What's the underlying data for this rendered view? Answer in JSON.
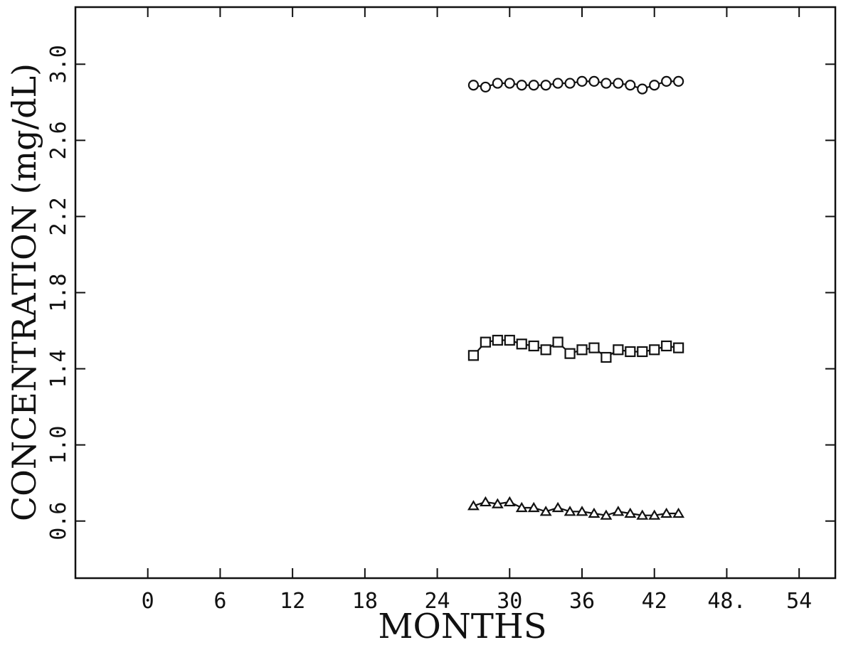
{
  "chart_data": {
    "type": "line",
    "title": "",
    "xlabel": "MONTHS",
    "ylabel": "CONCENTRATION (mg/dL)",
    "xlim": [
      -6,
      57
    ],
    "ylim": [
      0.3,
      3.3
    ],
    "xticks": [
      0,
      6,
      12,
      18,
      24,
      30,
      36,
      42,
      48,
      54
    ],
    "xtick_labels": [
      "0",
      "6",
      "12",
      "18",
      "24",
      "30",
      "36",
      "42",
      "48.",
      "54"
    ],
    "yticks": [
      0.6,
      1.0,
      1.4,
      1.8,
      2.2,
      2.6,
      3.0
    ],
    "ytick_labels": [
      "0.6",
      "1.0",
      "1.4",
      "1.8",
      "2.2",
      "2.6",
      "3.0"
    ],
    "grid": false,
    "x": [
      27,
      28,
      29,
      30,
      31,
      32,
      33,
      34,
      35,
      36,
      37,
      38,
      39,
      40,
      41,
      42,
      43,
      44
    ],
    "series": [
      {
        "marker": "circle",
        "values": [
          2.89,
          2.88,
          2.9,
          2.9,
          2.89,
          2.89,
          2.89,
          2.9,
          2.9,
          2.91,
          2.91,
          2.9,
          2.9,
          2.89,
          2.87,
          2.89,
          2.91,
          2.91
        ]
      },
      {
        "marker": "square",
        "values": [
          1.47,
          1.54,
          1.55,
          1.55,
          1.53,
          1.52,
          1.5,
          1.54,
          1.48,
          1.5,
          1.51,
          1.46,
          1.5,
          1.49,
          1.49,
          1.5,
          1.52,
          1.51
        ]
      },
      {
        "marker": "triangle",
        "values": [
          0.68,
          0.7,
          0.69,
          0.7,
          0.67,
          0.67,
          0.65,
          0.67,
          0.65,
          0.65,
          0.64,
          0.63,
          0.65,
          0.64,
          0.63,
          0.63,
          0.64,
          0.64
        ]
      }
    ]
  }
}
